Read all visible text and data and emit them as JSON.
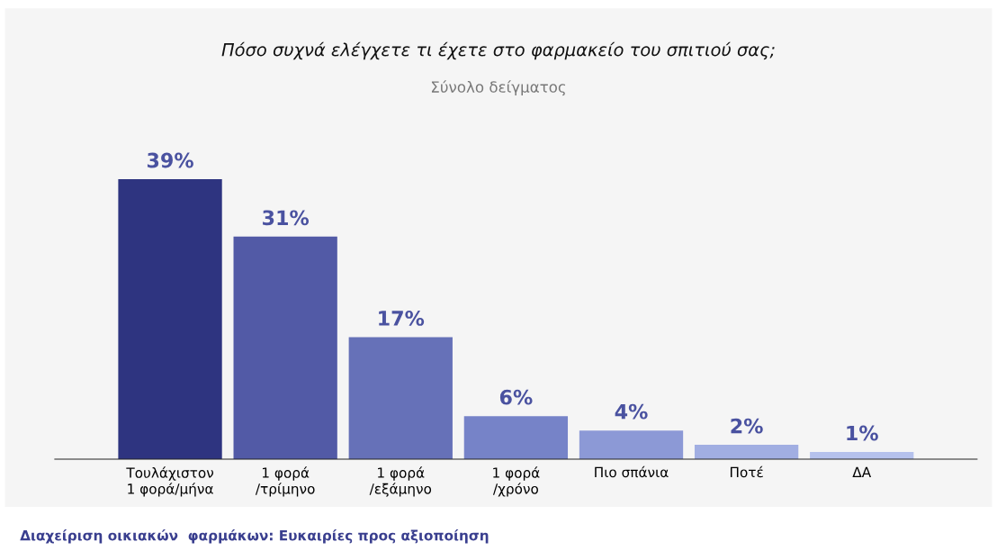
{
  "chart_data": {
    "type": "bar",
    "title": "Πόσο συχνά ελέγχετε τι έχετε στο φαρμακείο του σπιτιού σας;",
    "subtitle": "Σύνολο δείγματος",
    "categories": [
      "Τουλάχιστον\n1 φορά/μήνα",
      "1 φορά\n/τρίμηνο",
      "1 φορά\n/εξάμηνο",
      "1 φορά\n/χρόνο",
      "Πιο σπάνια",
      "Ποτέ",
      "ΔΑ"
    ],
    "values": [
      39,
      31,
      17,
      6,
      4,
      2,
      1
    ],
    "colors": [
      "#2e3480",
      "#525aa6",
      "#6671b8",
      "#7683c8",
      "#8c99d6",
      "#a1aee2",
      "#b5c1ec"
    ],
    "value_labels": [
      "39%",
      "31%",
      "17%",
      "6%",
      "4%",
      "2%",
      "1%"
    ],
    "annotations": [
      "Διαχείριση οικιακών  φαρμάκων: Ευκαιρίες προς αξιοποίηση"
    ],
    "grid": false,
    "legend": false
  }
}
